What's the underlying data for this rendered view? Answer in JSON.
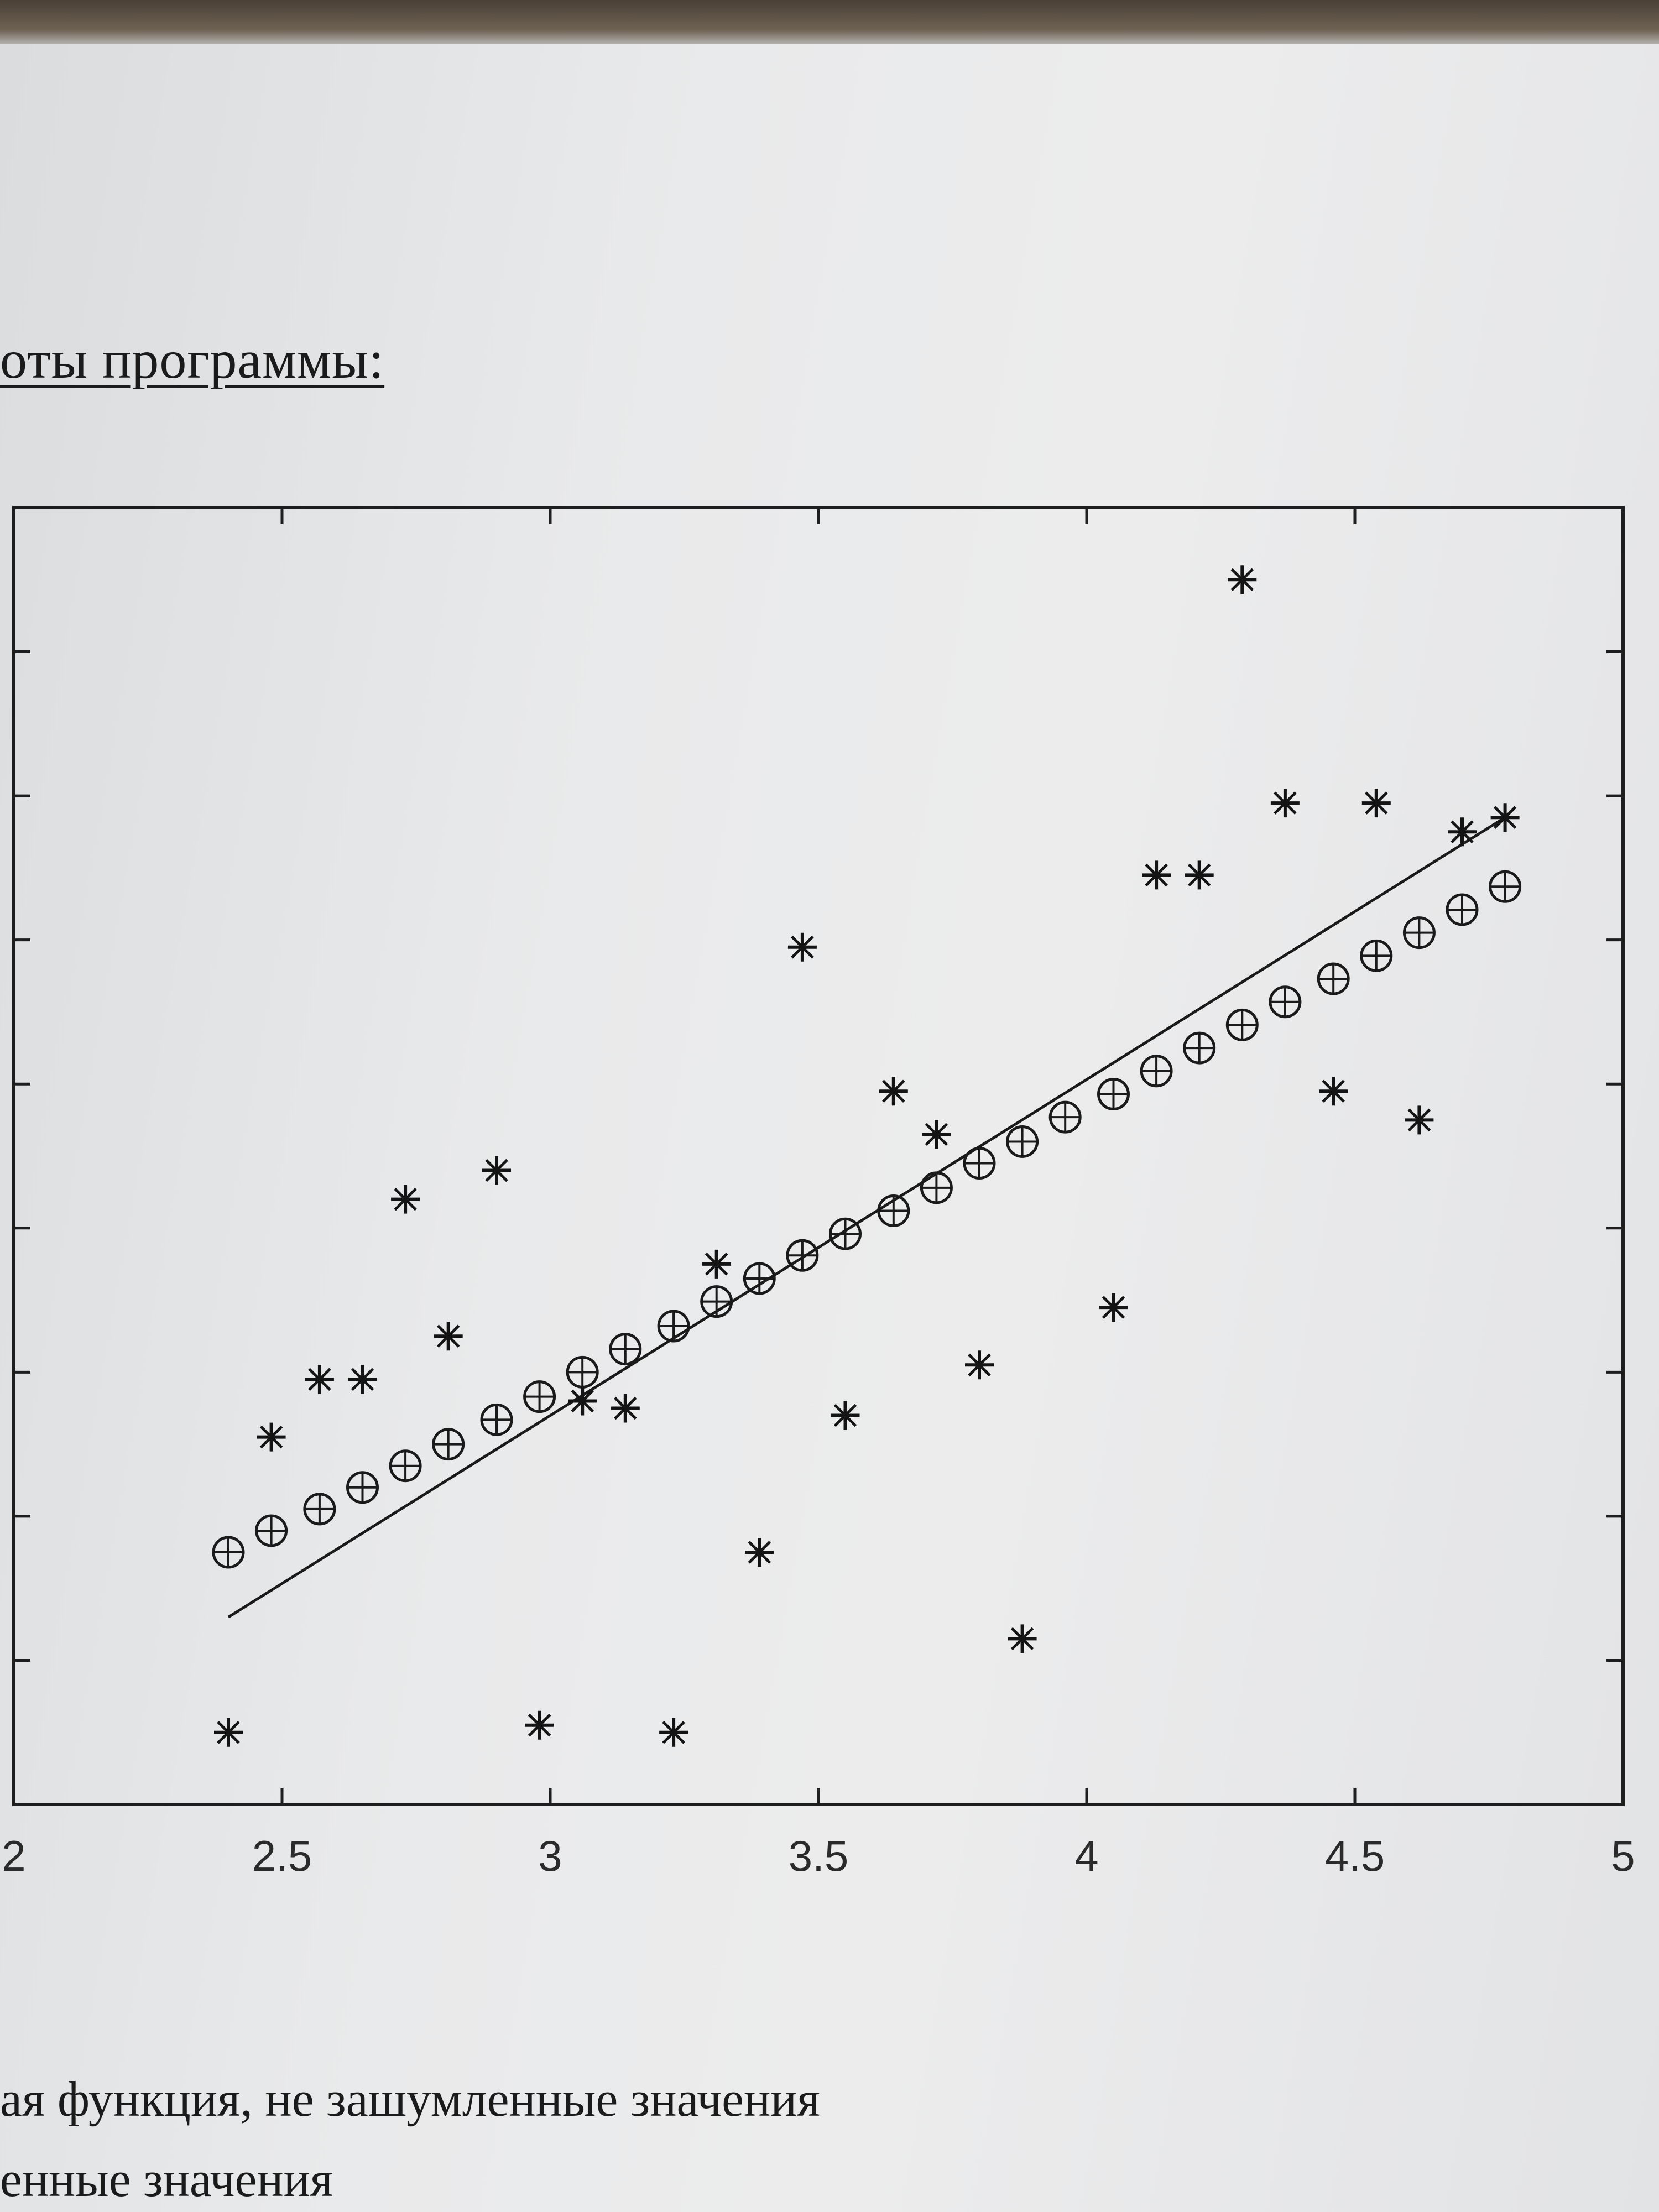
{
  "heading": "оты программы:",
  "captions": [
    "ая функция, не зашумленные значения",
    "енные значения"
  ],
  "chart_data": {
    "type": "scatter",
    "title": "",
    "xlabel": "",
    "ylabel": "",
    "xlim": [
      2,
      5
    ],
    "x_ticks": [
      "2",
      "2.5",
      "3",
      "3.5",
      "4",
      "4.5",
      "5"
    ],
    "y_ticks_count": 8,
    "grid": false,
    "series": [
      {
        "marker": "circle-plus",
        "x": [
          2.4,
          2.48,
          2.57,
          2.65,
          2.73,
          2.81,
          2.9,
          2.98,
          3.06,
          3.14,
          3.23,
          3.31,
          3.39,
          3.47,
          3.55,
          3.64,
          3.72,
          3.8,
          3.88,
          3.96,
          4.05,
          4.13,
          4.21,
          4.29,
          4.37,
          4.46,
          4.54,
          4.62,
          4.7,
          4.78
        ],
        "y": [
          1.75,
          1.9,
          2.05,
          2.2,
          2.35,
          2.5,
          2.67,
          2.83,
          3.0,
          3.16,
          3.32,
          3.49,
          3.65,
          3.81,
          3.96,
          4.12,
          4.28,
          4.45,
          4.6,
          4.77,
          4.93,
          5.09,
          5.25,
          5.41,
          5.57,
          5.73,
          5.89,
          6.05,
          6.21,
          6.37
        ]
      },
      {
        "marker": "star",
        "x": [
          2.4,
          2.48,
          2.57,
          2.65,
          2.73,
          2.81,
          2.9,
          2.98,
          3.06,
          3.14,
          3.23,
          3.31,
          3.39,
          3.47,
          3.55,
          3.64,
          3.72,
          3.8,
          3.88,
          4.05,
          4.13,
          4.21,
          4.29,
          4.37,
          4.46,
          4.54,
          4.62,
          4.7,
          4.78
        ],
        "y": [
          0.5,
          2.55,
          2.95,
          2.95,
          4.2,
          3.25,
          4.4,
          0.55,
          2.8,
          2.75,
          0.5,
          3.75,
          1.75,
          5.95,
          2.7,
          4.95,
          4.65,
          3.05,
          1.15,
          3.45,
          6.45,
          6.45,
          8.5,
          6.95,
          4.95,
          6.95,
          4.75,
          6.75,
          6.85
        ]
      },
      {
        "marker": "line",
        "x": [
          2.4,
          4.78
        ],
        "y": [
          1.3,
          6.85
        ]
      }
    ]
  }
}
